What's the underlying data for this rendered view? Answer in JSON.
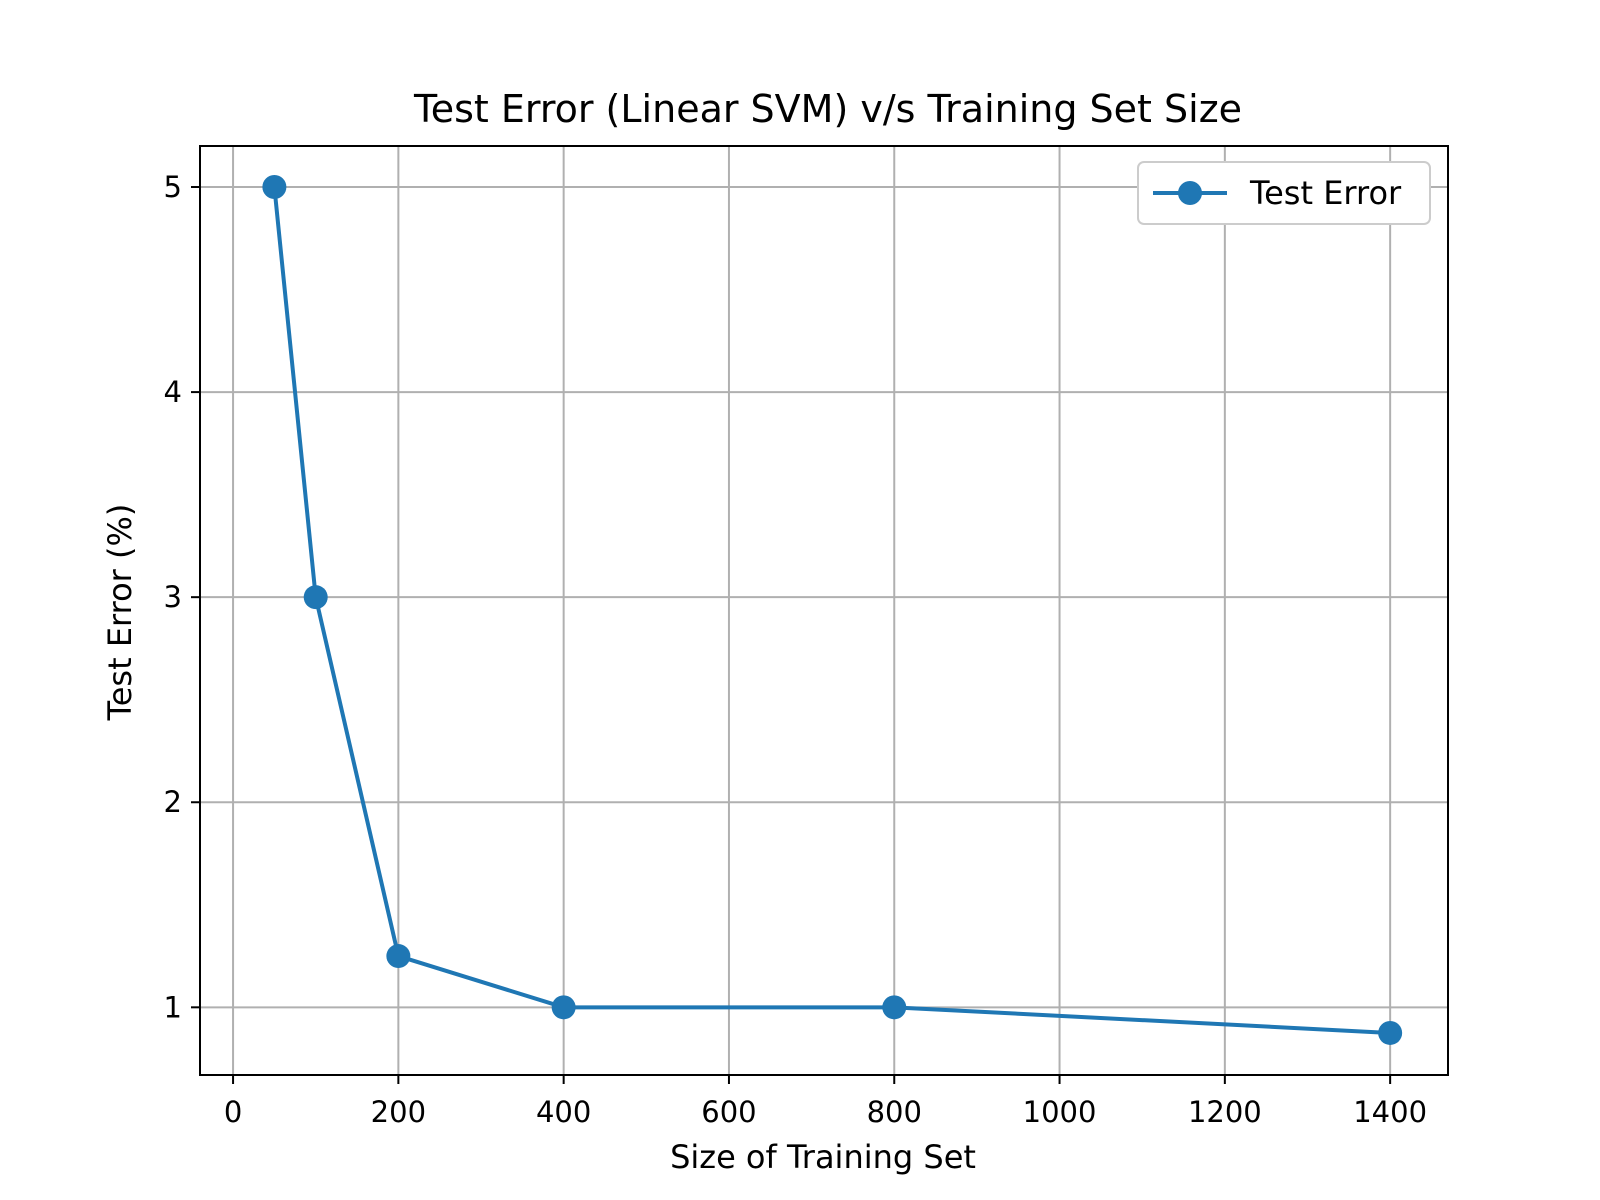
{
  "chart_data": {
    "type": "line",
    "title": "Test Error (Linear SVM) v/s Training Set Size",
    "xlabel": "Size of Training Set",
    "ylabel": "Test Error (%)",
    "xlim": [
      -40,
      1470
    ],
    "ylim": [
      0.67,
      5.2
    ],
    "xticks": [
      0,
      200,
      400,
      600,
      800,
      1000,
      1200,
      1400
    ],
    "yticks": [
      1,
      2,
      3,
      4,
      5
    ],
    "grid": true,
    "legend": "top-right",
    "series": [
      {
        "name": "Test Error",
        "color": "#1f77b4",
        "marker": "circle",
        "x": [
          50,
          100,
          200,
          400,
          800,
          1400
        ],
        "y": [
          5.0,
          3.0,
          1.25,
          1.0,
          1.0,
          0.875
        ]
      }
    ]
  }
}
